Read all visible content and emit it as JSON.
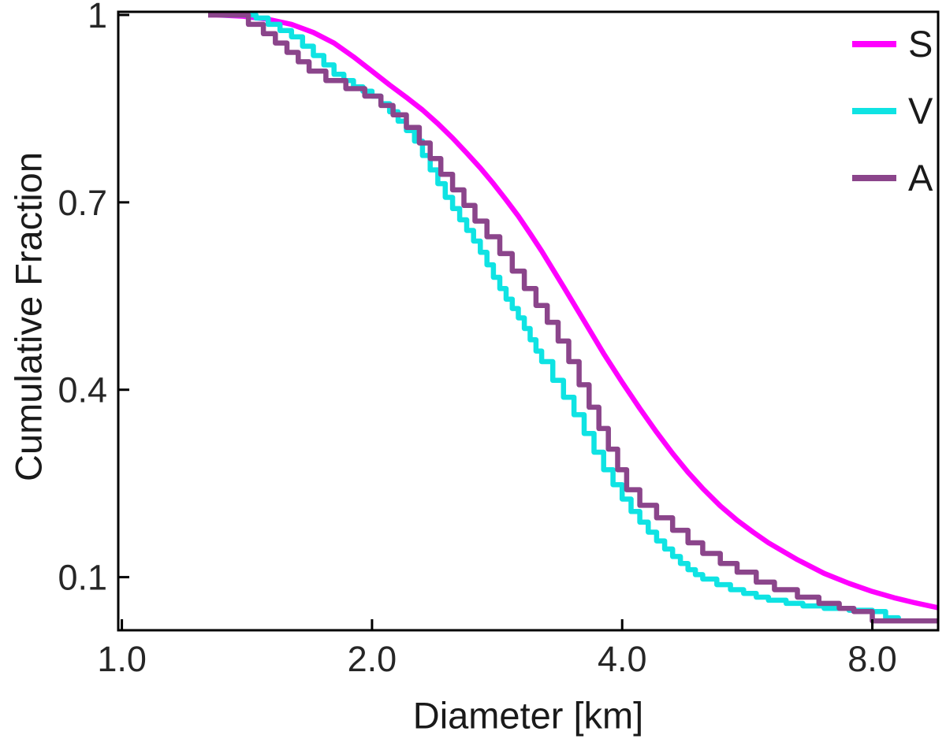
{
  "figure": {
    "background": "#ffffff",
    "frame_color": "#000000",
    "tick_color": "#262626",
    "text_color": "#1a1a1a"
  },
  "chart_data": {
    "type": "line",
    "title": "",
    "xlabel": "Diameter [km]",
    "ylabel": "Cumulative Fraction",
    "x_scale": "log",
    "y_scale": "linear",
    "xlim": [
      0.99,
      9.6
    ],
    "ylim": [
      0.015,
      1.005
    ],
    "grid": false,
    "legend_position": "top-right",
    "xticks": {
      "values": [
        1,
        2,
        4,
        8
      ],
      "labels": [
        "1.0",
        "2.0",
        "4.0",
        "8.0"
      ]
    },
    "yticks": {
      "values": [
        0.1,
        0.4,
        0.7,
        1
      ],
      "labels": [
        "0.1",
        "0.4",
        "0.7",
        "1"
      ]
    },
    "series": [
      {
        "name": "S",
        "color": "#ff00ff",
        "style": "line",
        "x": [
          1.27,
          1.3,
          1.4,
          1.5,
          1.6,
          1.7,
          1.8,
          1.9,
          2.0,
          2.1,
          2.2,
          2.3,
          2.4,
          2.5,
          2.6,
          2.7,
          2.8,
          2.9,
          3.0,
          3.1,
          3.2,
          3.4,
          3.6,
          3.8,
          4.0,
          4.2,
          4.4,
          4.6,
          4.8,
          5.0,
          5.25,
          5.5,
          5.75,
          6.0,
          6.5,
          7.0,
          7.5,
          8.0,
          8.5,
          9.0,
          9.6
        ],
        "y": [
          1.0,
          1.0,
          0.998,
          0.993,
          0.985,
          0.972,
          0.955,
          0.933,
          0.91,
          0.888,
          0.868,
          0.848,
          0.826,
          0.803,
          0.779,
          0.755,
          0.73,
          0.704,
          0.678,
          0.65,
          0.622,
          0.565,
          0.51,
          0.458,
          0.412,
          0.37,
          0.332,
          0.298,
          0.268,
          0.242,
          0.214,
          0.191,
          0.172,
          0.155,
          0.128,
          0.106,
          0.09,
          0.077,
          0.067,
          0.059,
          0.051
        ]
      },
      {
        "name": "V",
        "color": "#0fe3e3",
        "style": "step",
        "x": [
          1.32,
          1.45,
          1.5,
          1.55,
          1.6,
          1.65,
          1.7,
          1.75,
          1.8,
          1.85,
          1.9,
          1.95,
          2.0,
          2.05,
          2.1,
          2.15,
          2.2,
          2.25,
          2.3,
          2.35,
          2.4,
          2.45,
          2.5,
          2.55,
          2.6,
          2.65,
          2.7,
          2.75,
          2.8,
          2.85,
          2.9,
          2.95,
          3.0,
          3.05,
          3.1,
          3.15,
          3.2,
          3.3,
          3.4,
          3.5,
          3.6,
          3.7,
          3.8,
          3.9,
          4.0,
          4.1,
          4.2,
          4.3,
          4.4,
          4.5,
          4.6,
          4.7,
          4.8,
          4.9,
          5.0,
          5.2,
          5.4,
          5.6,
          5.8,
          6.0,
          6.3,
          6.6,
          7.0,
          7.5,
          8.0,
          8.3,
          8.6
        ],
        "y": [
          1.0,
          0.995,
          0.985,
          0.975,
          0.965,
          0.95,
          0.935,
          0.92,
          0.905,
          0.895,
          0.885,
          0.878,
          0.87,
          0.858,
          0.845,
          0.83,
          0.815,
          0.798,
          0.775,
          0.752,
          0.73,
          0.708,
          0.69,
          0.672,
          0.655,
          0.638,
          0.62,
          0.6,
          0.58,
          0.562,
          0.545,
          0.53,
          0.515,
          0.498,
          0.48,
          0.462,
          0.445,
          0.415,
          0.388,
          0.36,
          0.33,
          0.3,
          0.272,
          0.248,
          0.225,
          0.205,
          0.188,
          0.172,
          0.158,
          0.145,
          0.133,
          0.122,
          0.112,
          0.104,
          0.097,
          0.088,
          0.08,
          0.074,
          0.068,
          0.063,
          0.058,
          0.054,
          0.05,
          0.047,
          0.045,
          0.035,
          0.03
        ]
      },
      {
        "name": "A",
        "color": "#8b458b",
        "style": "step",
        "x": [
          1.27,
          1.42,
          1.48,
          1.53,
          1.58,
          1.63,
          1.68,
          1.76,
          1.86,
          1.96,
          2.05,
          2.12,
          2.2,
          2.28,
          2.35,
          2.42,
          2.5,
          2.58,
          2.66,
          2.75,
          2.85,
          2.95,
          3.05,
          3.15,
          3.25,
          3.35,
          3.45,
          3.55,
          3.65,
          3.75,
          3.85,
          3.95,
          4.05,
          4.2,
          4.4,
          4.6,
          4.8,
          5.0,
          5.25,
          5.5,
          5.8,
          6.1,
          6.5,
          6.9,
          7.3,
          7.6,
          8.0,
          9.6
        ],
        "y": [
          1.0,
          0.985,
          0.97,
          0.955,
          0.94,
          0.925,
          0.91,
          0.895,
          0.882,
          0.87,
          0.855,
          0.84,
          0.82,
          0.795,
          0.77,
          0.745,
          0.72,
          0.695,
          0.67,
          0.645,
          0.618,
          0.59,
          0.562,
          0.535,
          0.508,
          0.478,
          0.445,
          0.408,
          0.372,
          0.338,
          0.305,
          0.272,
          0.24,
          0.215,
          0.195,
          0.175,
          0.155,
          0.138,
          0.122,
          0.108,
          0.092,
          0.08,
          0.068,
          0.058,
          0.05,
          0.045,
          0.03,
          0.03
        ]
      }
    ]
  }
}
